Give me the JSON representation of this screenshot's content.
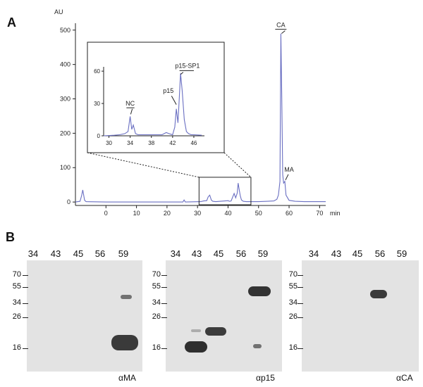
{
  "panel_a": {
    "letter": "A",
    "y_unit": "AU",
    "x_unit": "min",
    "peaks": [
      "CA",
      "MA"
    ],
    "inset": {
      "peaks": [
        "NC",
        "p15",
        "p15-SP1"
      ],
      "x_ticks": [
        "30",
        "34",
        "38",
        "42",
        "46"
      ],
      "y_ticks": [
        "0",
        "30",
        "60"
      ]
    }
  },
  "chart_data": {
    "type": "line",
    "title": "",
    "xlabel": "min",
    "ylabel": "AU",
    "xlim": [
      -10,
      72
    ],
    "ylim": [
      -10,
      520
    ],
    "x_ticks": [
      0,
      10,
      20,
      30,
      40,
      50,
      60,
      70
    ],
    "y_ticks": [
      0,
      100,
      200,
      300,
      400,
      500
    ],
    "series": [
      {
        "x": [
          -10,
          -8.5,
          -8,
          -7.6,
          -7.3,
          -7,
          -6.5,
          0,
          20,
          25.2,
          25.6,
          26,
          31,
          32,
          33,
          33.5,
          34,
          34.5,
          35,
          36,
          40,
          40.5,
          41,
          42,
          42.5,
          43,
          43.3,
          43.6,
          44,
          44.4,
          45,
          46,
          50,
          55,
          56,
          56.5,
          57,
          57.3,
          57.6,
          57.9,
          58.2,
          58.6,
          59,
          60,
          62,
          65,
          72
        ],
        "y": [
          0,
          2,
          18,
          35,
          20,
          5,
          1,
          0,
          0,
          0,
          6,
          0,
          1,
          3,
          4,
          15,
          20,
          6,
          2,
          1,
          4,
          2,
          3,
          25,
          12,
          26,
          55,
          40,
          18,
          6,
          2,
          1,
          1,
          3,
          8,
          20,
          60,
          490,
          300,
          80,
          55,
          60,
          20,
          5,
          2,
          1,
          1
        ]
      }
    ]
  },
  "panel_b": {
    "letter": "B",
    "blots": [
      {
        "antibody": "αMA",
        "lanes": [
          "34",
          "43",
          "45",
          "56",
          "59"
        ],
        "mw": [
          "70",
          "55",
          "34",
          "26",
          "16"
        ]
      },
      {
        "antibody": "αp15",
        "lanes": [
          "34",
          "43",
          "45",
          "56",
          "59"
        ],
        "mw": [
          "70",
          "55",
          "34",
          "26",
          "16"
        ]
      },
      {
        "antibody": "αCA",
        "lanes": [
          "34",
          "43",
          "45",
          "56",
          "59"
        ],
        "mw": [
          "70",
          "55",
          "34",
          "26",
          "16"
        ]
      }
    ]
  }
}
